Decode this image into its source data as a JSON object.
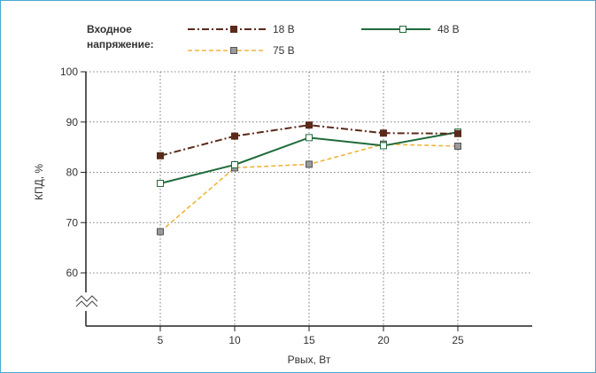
{
  "chart_data": {
    "type": "line",
    "xlabel": "Pвых, Вт",
    "ylabel": "КПД, %",
    "x": [
      5,
      10,
      15,
      20,
      25
    ],
    "xlim": [
      0,
      30
    ],
    "ylim": [
      50,
      100
    ],
    "y_ticks": [
      60,
      70,
      80,
      90,
      100
    ],
    "axis_break": true,
    "grid": "dotted",
    "legend": {
      "title": "Входное напряжение:",
      "placement": "top"
    },
    "series": [
      {
        "name": "18 В",
        "values": [
          83.3,
          87.2,
          89.4,
          87.8,
          87.7
        ],
        "color": "#5a2a1a",
        "dash": "dash-dot",
        "marker": "filled-square"
      },
      {
        "name": "48 В",
        "values": [
          77.8,
          81.5,
          86.9,
          85.3,
          88.0
        ],
        "color": "#1f6b3a",
        "dash": "solid",
        "marker": "open-square"
      },
      {
        "name": "75 В",
        "values": [
          68.2,
          80.9,
          81.6,
          85.6,
          85.2
        ],
        "color": "#f0b43c",
        "dash": "dashed",
        "marker": "gray-square"
      }
    ]
  }
}
